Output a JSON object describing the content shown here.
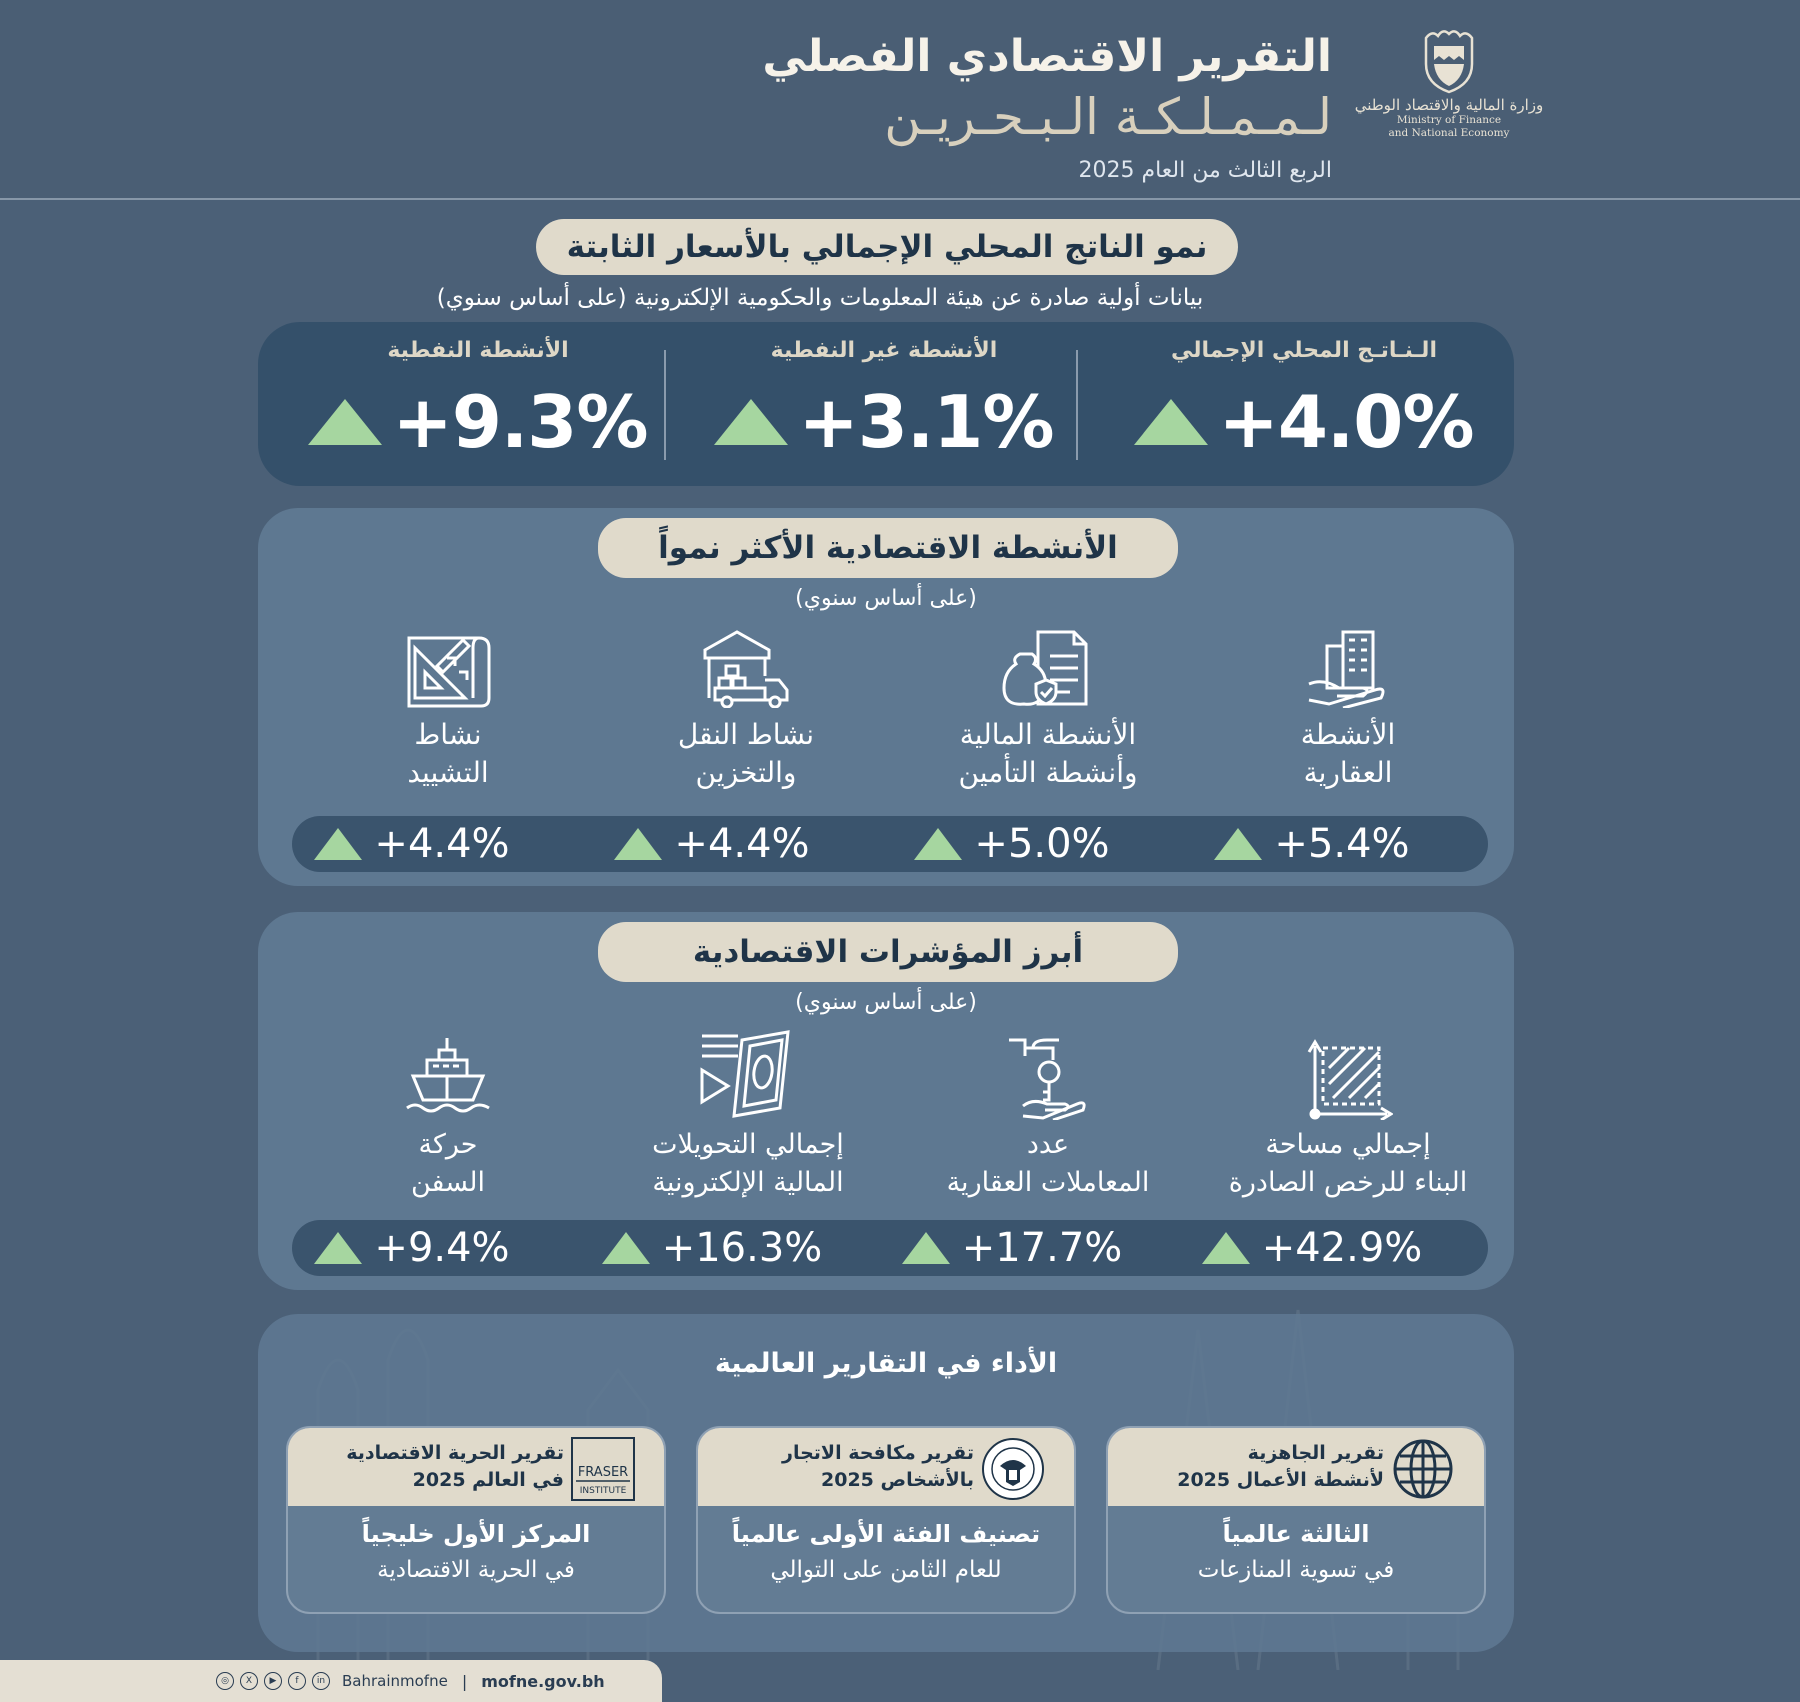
{
  "header": {
    "title_line1": "التقرير الاقتصادي الفصلي",
    "title_line2": "لـمـمـلـكـة الـبـحـريـن",
    "subtitle": "الربع الثالث من العام 2025",
    "ministry_ar": "وزارة المالية والاقتصاد الوطني",
    "ministry_en_line1": "Ministry of Finance",
    "ministry_en_line2": "and National Economy"
  },
  "gdp": {
    "title": "نمو الناتج المحلي الإجمالي بالأسعار الثابتة",
    "subtitle": "بيانات أولية صادرة عن هيئة المعلومات والحكومية الإلكترونية (على أساس سنوي)",
    "items": [
      {
        "label": "الـنـاتـج المحلي الإجمالي",
        "value": "+4.0%"
      },
      {
        "label": "الأنشطة غير النفطية",
        "value": "+3.1%"
      },
      {
        "label": "الأنشطة النفطية",
        "value": "+9.3%"
      }
    ]
  },
  "growth": {
    "title": "الأنشطة الاقتصادية الأكثر نمواً",
    "subtitle": "(على أساس سنوي)",
    "items": [
      {
        "line1": "الأنشطة",
        "line2": "العقارية",
        "value": "+5.4%",
        "icon": "real-estate-icon"
      },
      {
        "line1": "الأنشطة المالية",
        "line2": "وأنشطة التأمين",
        "value": "+5.0%",
        "icon": "finance-insurance-icon"
      },
      {
        "line1": "نشاط النقل",
        "line2": "والتخزين",
        "value": "+4.4%",
        "icon": "transport-storage-icon"
      },
      {
        "line1": "نشاط",
        "line2": "التشييد",
        "value": "+4.4%",
        "icon": "construction-icon"
      }
    ]
  },
  "indicators": {
    "title": "أبرز المؤشرات الاقتصادية",
    "subtitle": "(على أساس سنوي)",
    "items": [
      {
        "line1": "إجمالي مساحة",
        "line2": "البناء للرخص الصادرة",
        "value": "+42.9%",
        "icon": "building-area-icon"
      },
      {
        "line1": "عدد",
        "line2": "المعاملات العقارية",
        "value": "+17.7%",
        "icon": "property-key-icon"
      },
      {
        "line1": "إجمالي التحويلات",
        "line2": "المالية الإلكترونية",
        "value": "+16.3%",
        "icon": "e-transfer-icon"
      },
      {
        "line1": "حركة",
        "line2": "السفن",
        "value": "+9.4%",
        "icon": "ship-icon"
      }
    ]
  },
  "global": {
    "title": "الأداء في التقارير العالمية",
    "cards": [
      {
        "top_line1": "تقرير الجاهزية",
        "top_line2": "لأنشطة الأعمال 2025",
        "bottom_line1": "الثالثة عالمياً",
        "bottom_line2": "في تسوية المنازعات",
        "icon": "globe-icon"
      },
      {
        "top_line1": "تقرير مكافحة الاتجار",
        "top_line2": "بالأشخاص 2025",
        "bottom_line1": "تصنيف الفئة الأولى عالمياً",
        "bottom_line2": "للعام الثامن على التوالي",
        "icon": "us-state-department-seal-icon"
      },
      {
        "top_line1": "تقرير الحرية الاقتصادية",
        "top_line2": "في العالم 2025",
        "bottom_line1": "المركز الأول خليجياً",
        "bottom_line2": "في الحرية الاقتصادية",
        "icon": "fraser-institute-logo",
        "logo_text1": "FRASER",
        "logo_text2": "INSTITUTE"
      }
    ]
  },
  "footer": {
    "handle": "Bahrainmofne",
    "separator": "|",
    "website": "mofne.gov.bh",
    "social_icons": [
      "instagram-icon",
      "x-icon",
      "youtube-icon",
      "facebook-icon",
      "linkedin-icon"
    ]
  },
  "colors": {
    "background": "#4b6077",
    "panel": "#5e7891",
    "dark_panel": "#34506a",
    "pill": "#e0dacb",
    "accent_up": "#a6d6a0"
  }
}
